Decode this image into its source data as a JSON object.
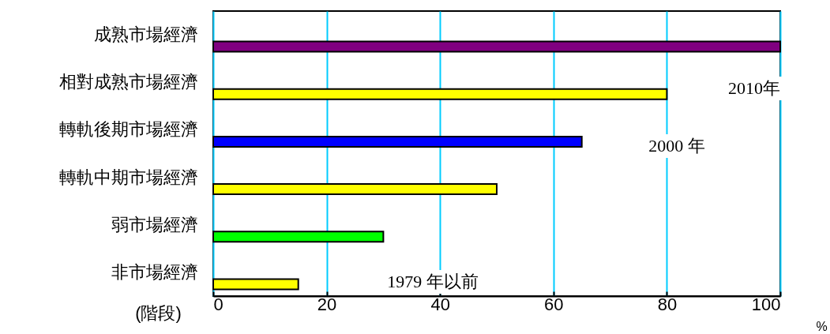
{
  "chart_data": {
    "type": "bar",
    "orientation": "horizontal",
    "ylabel": "(階段)",
    "xlabel": "%",
    "categories": [
      "成熟市場經濟",
      "相對成熟市場經濟",
      "轉軌後期市場經濟",
      "轉軌中期市場經濟",
      "弱市場經濟",
      "非市場經濟"
    ],
    "values": [
      100,
      80,
      65,
      50,
      30,
      15
    ],
    "colors": [
      "#800080",
      "#ffff00",
      "#0000ff",
      "#ffff00",
      "#00ff00",
      "#ffff00"
    ],
    "xlim": [
      0,
      100
    ],
    "xticks": [
      0,
      20,
      40,
      60,
      80,
      100
    ],
    "grid": "x",
    "annotations": [
      "2010年",
      "2000 年",
      "1979 年以前"
    ]
  }
}
